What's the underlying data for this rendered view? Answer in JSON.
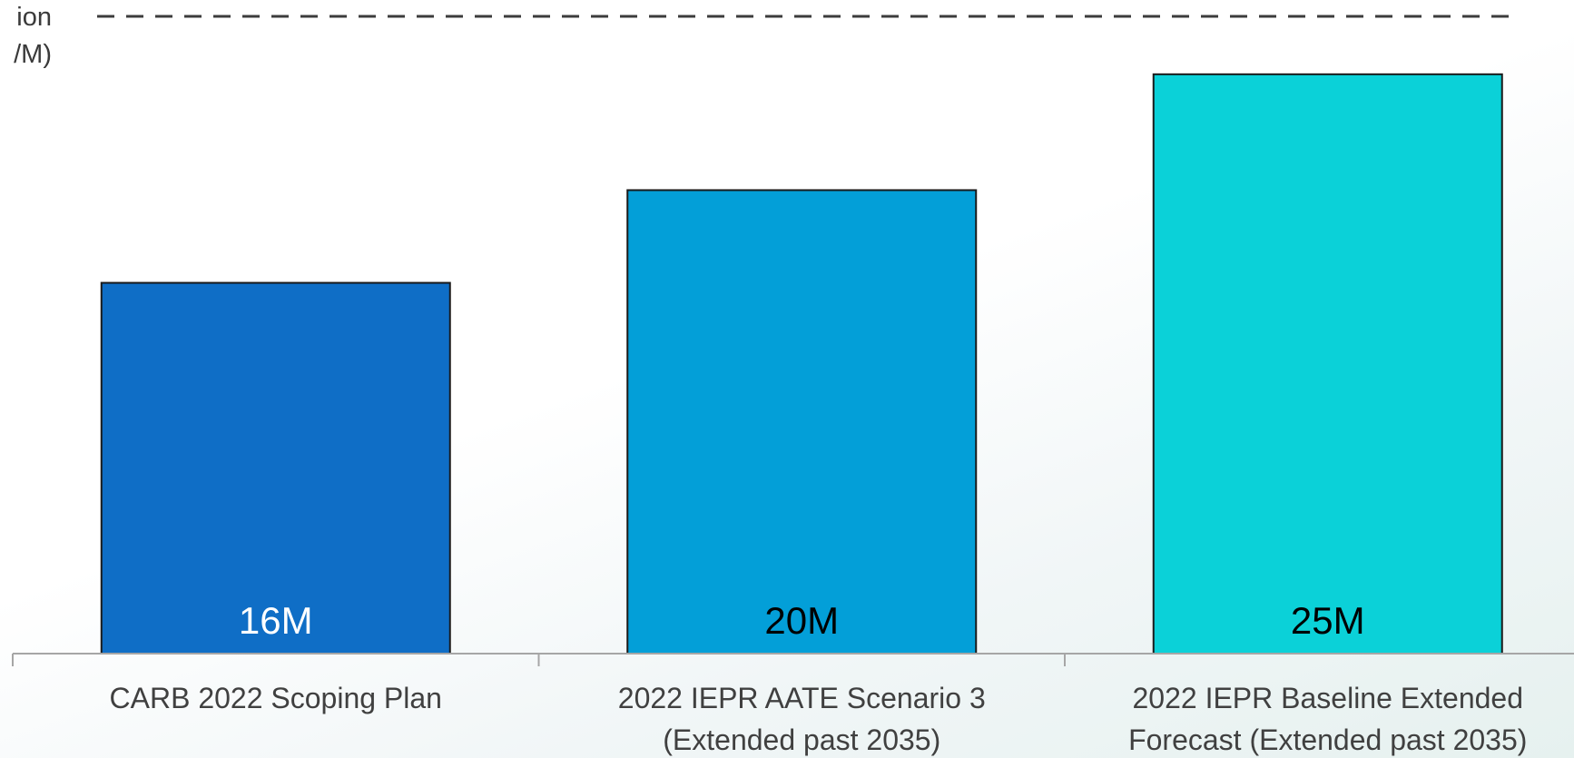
{
  "legend": {
    "line1": "ion",
    "line2": "/M)"
  },
  "chart_data": {
    "type": "bar",
    "categories": [
      [
        "CARB 2022 Scoping Plan"
      ],
      [
        "2022 IEPR AATE Scenario 3",
        "(Extended past 2035)"
      ],
      [
        "2022 IEPR Baseline Extended",
        "Forecast (Extended past 2035)"
      ]
    ],
    "values": [
      16,
      20,
      25
    ],
    "data_labels": [
      "16M",
      "20M",
      "25M"
    ],
    "colors": [
      "#0f6ec6",
      "#039fd8",
      "#0bd1d8"
    ],
    "label_colors": [
      "#ffffff",
      "#000000",
      "#000000"
    ],
    "ylim": [
      0,
      27.5
    ],
    "reference_line": {
      "style": "dashed"
    },
    "title": "",
    "xlabel": "",
    "ylabel": "",
    "grid": false
  }
}
